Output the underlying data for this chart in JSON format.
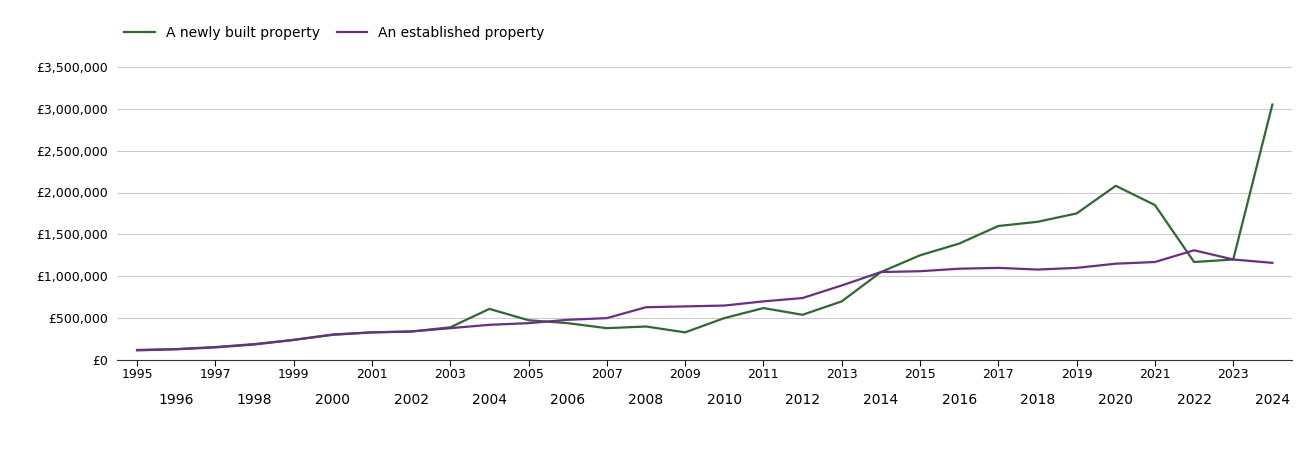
{
  "newly_built": {
    "years": [
      1995,
      1996,
      1997,
      1998,
      1999,
      2000,
      2001,
      2002,
      2003,
      2004,
      2005,
      2006,
      2007,
      2008,
      2009,
      2010,
      2011,
      2012,
      2013,
      2014,
      2015,
      2016,
      2017,
      2018,
      2019,
      2020,
      2021,
      2022,
      2023,
      2024
    ],
    "values": [
      120000,
      130000,
      155000,
      190000,
      240000,
      300000,
      330000,
      340000,
      390000,
      610000,
      475000,
      440000,
      380000,
      400000,
      330000,
      500000,
      620000,
      540000,
      700000,
      1050000,
      1250000,
      1390000,
      1600000,
      1650000,
      1750000,
      2080000,
      1850000,
      1170000,
      1200000,
      3050000
    ]
  },
  "established": {
    "years": [
      1995,
      1996,
      1997,
      1998,
      1999,
      2000,
      2001,
      2002,
      2003,
      2004,
      2005,
      2006,
      2007,
      2008,
      2009,
      2010,
      2011,
      2012,
      2013,
      2014,
      2015,
      2016,
      2017,
      2018,
      2019,
      2020,
      2021,
      2022,
      2023,
      2024
    ],
    "values": [
      115000,
      128000,
      150000,
      185000,
      240000,
      305000,
      330000,
      340000,
      380000,
      420000,
      440000,
      480000,
      500000,
      630000,
      640000,
      650000,
      700000,
      740000,
      890000,
      1050000,
      1060000,
      1090000,
      1100000,
      1080000,
      1100000,
      1150000,
      1170000,
      1310000,
      1200000,
      1160000
    ]
  },
  "newly_color": "#2d6a2d",
  "established_color": "#6a2d8a",
  "background_color": "#ffffff",
  "grid_color": "#cccccc",
  "legend_labels": [
    "A newly built property",
    "An established property"
  ],
  "ylim": [
    0,
    3600000
  ],
  "ytick_values": [
    0,
    500000,
    1000000,
    1500000,
    2000000,
    2500000,
    3000000,
    3500000
  ],
  "xtick_odd": [
    1995,
    1997,
    1999,
    2001,
    2003,
    2005,
    2007,
    2009,
    2011,
    2013,
    2015,
    2017,
    2019,
    2021,
    2023
  ],
  "xtick_even": [
    1996,
    1998,
    2000,
    2002,
    2004,
    2006,
    2008,
    2010,
    2012,
    2014,
    2016,
    2018,
    2020,
    2022,
    2024
  ],
  "xlim": [
    1994.5,
    2024.5
  ],
  "linewidth": 1.6,
  "tick_fontsize": 9,
  "legend_fontsize": 10
}
